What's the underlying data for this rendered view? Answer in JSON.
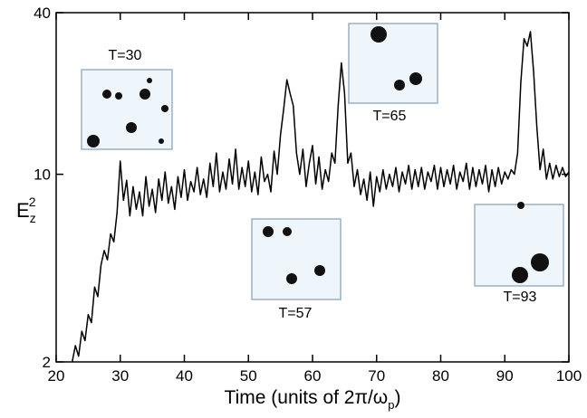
{
  "chart_data": {
    "type": "line",
    "log_y": true,
    "color": "#000000",
    "ylabel": [
      "E",
      "z",
      "2"
    ],
    "xlabel": [
      "Time (units of 2π/ω",
      "p",
      ")"
    ],
    "inset_labels": [
      "T=30",
      "T=57",
      "T=65",
      "T=93"
    ],
    "xlim": [
      20,
      100
    ],
    "xticks": [
      20,
      30,
      40,
      50,
      60,
      70,
      80,
      90,
      100
    ],
    "ylim": [
      2,
      40
    ],
    "yticks": [
      2,
      10,
      40
    ],
    "x": [
      22.5,
      23,
      23.5,
      24,
      24.5,
      25,
      25.5,
      26,
      26.5,
      27,
      27.5,
      28,
      28.5,
      29,
      29.5,
      30,
      30.5,
      31,
      31.5,
      32,
      32.5,
      33,
      33.5,
      34,
      34.5,
      35,
      35.5,
      36,
      36.5,
      37,
      37.5,
      38,
      38.5,
      39,
      39.5,
      40,
      40.5,
      41,
      41.5,
      42,
      42.5,
      43,
      43.5,
      44,
      44.5,
      45,
      45.5,
      46,
      46.5,
      47,
      47.5,
      48,
      48.5,
      49,
      49.5,
      50,
      50.5,
      51,
      51.5,
      52,
      52.5,
      53,
      53.5,
      54,
      54.5,
      55,
      55.5,
      56,
      56.5,
      57,
      57.5,
      58,
      58.5,
      59,
      59.5,
      60,
      60.5,
      61,
      61.5,
      62,
      62.5,
      63,
      63.5,
      64,
      64.5,
      65,
      65.5,
      66,
      66.5,
      67,
      67.5,
      68,
      68.5,
      69,
      69.5,
      70,
      70.5,
      71,
      71.5,
      72,
      72.5,
      73,
      73.5,
      74,
      74.5,
      75,
      75.5,
      76,
      76.5,
      77,
      77.5,
      78,
      78.5,
      79,
      79.5,
      80,
      80.5,
      81,
      81.5,
      82,
      82.5,
      83,
      83.5,
      84,
      84.5,
      85,
      85.5,
      86,
      86.5,
      87,
      87.5,
      88,
      88.5,
      89,
      89.5,
      90,
      90.5,
      91,
      91.5,
      92,
      92.5,
      93,
      93.5,
      94,
      94.5,
      95,
      95.5,
      96,
      96.5,
      97,
      97.5,
      98,
      98.5,
      99,
      99.5,
      100
    ],
    "values": [
      2.0,
      2.3,
      2.1,
      2.6,
      2.4,
      3.0,
      2.8,
      3.8,
      3.5,
      4.6,
      5.2,
      4.8,
      6.0,
      5.6,
      7.2,
      11.2,
      8.0,
      9.5,
      7.0,
      9.0,
      7.4,
      8.6,
      7.0,
      9.8,
      7.6,
      8.8,
      7.2,
      9.6,
      8.0,
      10.2,
      7.8,
      9.0,
      7.4,
      9.8,
      8.2,
      10.4,
      8.0,
      9.4,
      8.6,
      10.6,
      8.4,
      9.6,
      8.2,
      11.0,
      9.0,
      12.0,
      8.6,
      10.2,
      8.8,
      11.4,
      9.2,
      12.4,
      8.8,
      10.6,
      9.0,
      11.2,
      8.6,
      10.2,
      8.4,
      11.6,
      9.4,
      10.0,
      8.6,
      12.2,
      10.0,
      14.0,
      17.5,
      22.5,
      20.0,
      18.0,
      12.0,
      10.0,
      12.4,
      9.0,
      11.0,
      12.8,
      9.2,
      11.6,
      8.8,
      10.4,
      9.4,
      12.0,
      11.0,
      18.0,
      26.0,
      20.0,
      11.0,
      12.0,
      9.0,
      10.4,
      8.4,
      9.6,
      8.0,
      10.2,
      7.6,
      9.8,
      8.6,
      10.4,
      8.8,
      10.0,
      9.0,
      10.6,
      8.6,
      10.2,
      9.2,
      10.8,
      8.8,
      10.4,
      9.0,
      10.6,
      8.8,
      10.2,
      9.4,
      10.8,
      8.8,
      10.6,
      9.0,
      10.4,
      9.2,
      10.8,
      8.8,
      10.2,
      9.4,
      11.0,
      8.8,
      10.6,
      9.0,
      10.4,
      9.2,
      10.8,
      8.6,
      10.4,
      9.0,
      10.6,
      9.2,
      10.2,
      9.6,
      10.4,
      10.0,
      12.0,
      22.0,
      32.0,
      30.0,
      34.0,
      24.0,
      15.0,
      10.4,
      12.4,
      9.6,
      11.0,
      9.6,
      10.8,
      9.8,
      10.6,
      9.8,
      10.2
    ]
  }
}
